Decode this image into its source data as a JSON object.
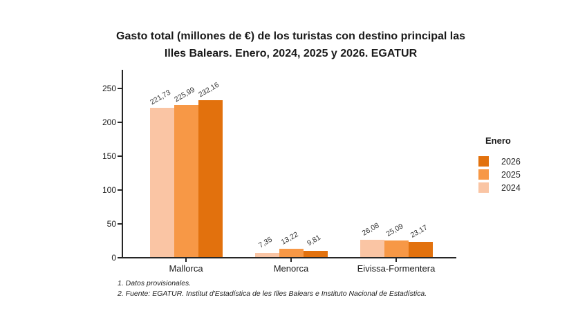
{
  "title": {
    "line1": "Gasto total (millones de €) de los turistas con destino principal las",
    "line2": "Illes Balears. Enero, 2024, 2025 y 2026. EGATUR"
  },
  "chart_data": {
    "type": "bar",
    "title": "Gasto total (millones de €) de los turistas con destino principal las Illes Balears. Enero, 2024, 2025 y 2026. EGATUR",
    "categories": [
      "Mallorca",
      "Menorca",
      "Eivissa-Formentera"
    ],
    "series": [
      {
        "name": "2024",
        "color": "#FAC5A4",
        "values": [
          221.73,
          7.35,
          26.08
        ]
      },
      {
        "name": "2025",
        "color": "#F79846",
        "values": [
          225.99,
          13.22,
          25.09
        ]
      },
      {
        "name": "2026",
        "color": "#E2710D",
        "values": [
          232.16,
          9.81,
          23.17
        ]
      }
    ],
    "xlabel": "",
    "ylabel": "",
    "ylim": [
      0,
      250
    ],
    "yticks": [
      0,
      50,
      100,
      150,
      200,
      250
    ],
    "grid": false,
    "value_label_format": "decimal-comma",
    "legend": {
      "title": "Enero",
      "position": "right",
      "entries": [
        "2026",
        "2025",
        "2024"
      ]
    }
  },
  "footnotes": [
    "1. Datos provisionales.",
    "2. Fuente: EGATUR. Institut d'Estadística de les Illes Balears e Instituto Nacional de Estadística."
  ],
  "colors": {
    "axis": "#262626",
    "background": "#ffffff",
    "series_2024": "#FAC5A4",
    "series_2025": "#F79846",
    "series_2026": "#E2710D"
  }
}
